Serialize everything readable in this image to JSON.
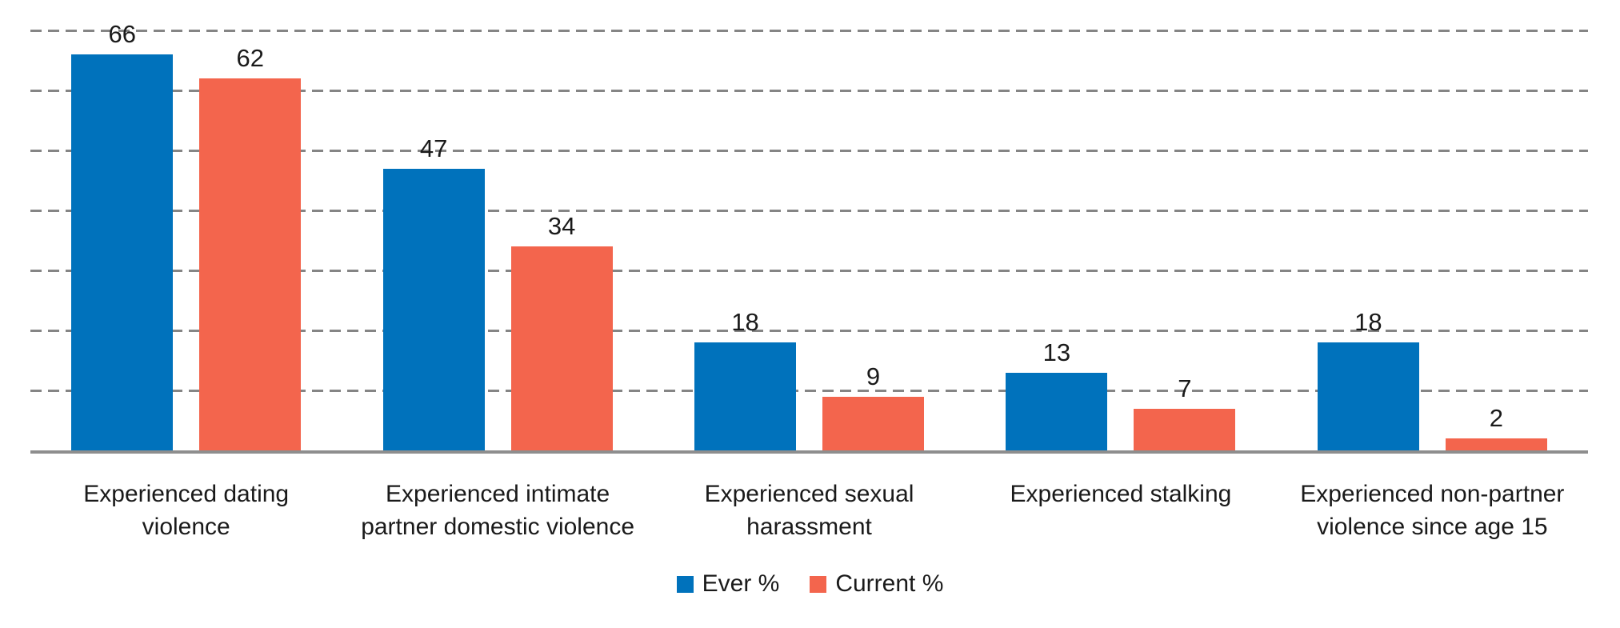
{
  "chart_data": {
    "type": "bar",
    "title": "",
    "xlabel": "",
    "ylabel": "",
    "categories": [
      "Experienced dating violence",
      "Experienced intimate partner domestic violence",
      "Experienced sexual harassment",
      "Experienced stalking",
      "Experienced non-partner violence since age 15"
    ],
    "category_lines": [
      [
        "Experienced dating",
        "violence"
      ],
      [
        "Experienced intimate",
        "partner domestic violence"
      ],
      [
        "Experienced sexual",
        "harassment"
      ],
      [
        "Experienced stalking"
      ],
      [
        "Experienced non-partner",
        "violence since age 15"
      ]
    ],
    "series": [
      {
        "name": "Ever %",
        "color": "#0072BC",
        "values": [
          66,
          47,
          18,
          13,
          18
        ]
      },
      {
        "name": "Current %",
        "color": "#F3654D",
        "values": [
          62,
          34,
          9,
          7,
          2
        ]
      }
    ],
    "ylim": [
      0,
      70
    ],
    "gridline_step": 10,
    "grid": "horizontal-dashed",
    "grid_color": "#858585",
    "axis_color": "#8E8E8E",
    "text_color": "#1A1A1A",
    "value_labels": true,
    "legend_position": "bottom",
    "y_tick_labels_visible": false
  }
}
